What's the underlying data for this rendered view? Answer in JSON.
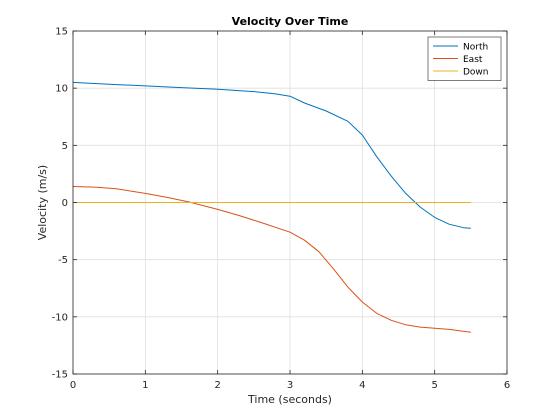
{
  "chart_data": {
    "type": "line",
    "title": "Velocity Over Time",
    "xlabel": "Time (seconds)",
    "ylabel": "Velocity (m/s)",
    "xlim": [
      0,
      6
    ],
    "ylim": [
      -15,
      15
    ],
    "xticks": [
      0,
      1,
      2,
      3,
      4,
      5,
      6
    ],
    "yticks": [
      -15,
      -10,
      -5,
      0,
      5,
      10,
      15
    ],
    "grid": true,
    "legend_position": "top-right",
    "series": [
      {
        "name": "North",
        "color": "#0072BD",
        "x": [
          0,
          0.5,
          1,
          1.5,
          2,
          2.5,
          2.8,
          3.0,
          3.2,
          3.5,
          3.8,
          4.0,
          4.2,
          4.4,
          4.6,
          4.8,
          5.0,
          5.2,
          5.4,
          5.5
        ],
        "y": [
          10.5,
          10.35,
          10.2,
          10.05,
          9.9,
          9.7,
          9.5,
          9.3,
          8.7,
          8.0,
          7.1,
          5.9,
          4.0,
          2.3,
          0.8,
          -0.4,
          -1.3,
          -1.9,
          -2.2,
          -2.25
        ]
      },
      {
        "name": "East",
        "color": "#D95319",
        "x": [
          0,
          0.3,
          0.6,
          1.0,
          1.3,
          1.6,
          2.0,
          2.3,
          2.6,
          3.0,
          3.2,
          3.4,
          3.6,
          3.8,
          4.0,
          4.2,
          4.4,
          4.6,
          4.8,
          5.0,
          5.2,
          5.5
        ],
        "y": [
          1.4,
          1.35,
          1.2,
          0.8,
          0.45,
          0.05,
          -0.6,
          -1.15,
          -1.75,
          -2.6,
          -3.3,
          -4.3,
          -5.8,
          -7.4,
          -8.7,
          -9.7,
          -10.3,
          -10.7,
          -10.9,
          -11.0,
          -11.1,
          -11.35
        ]
      },
      {
        "name": "Down",
        "color": "#EDB120",
        "x": [
          0,
          5.5
        ],
        "y": [
          0,
          0
        ]
      }
    ]
  }
}
